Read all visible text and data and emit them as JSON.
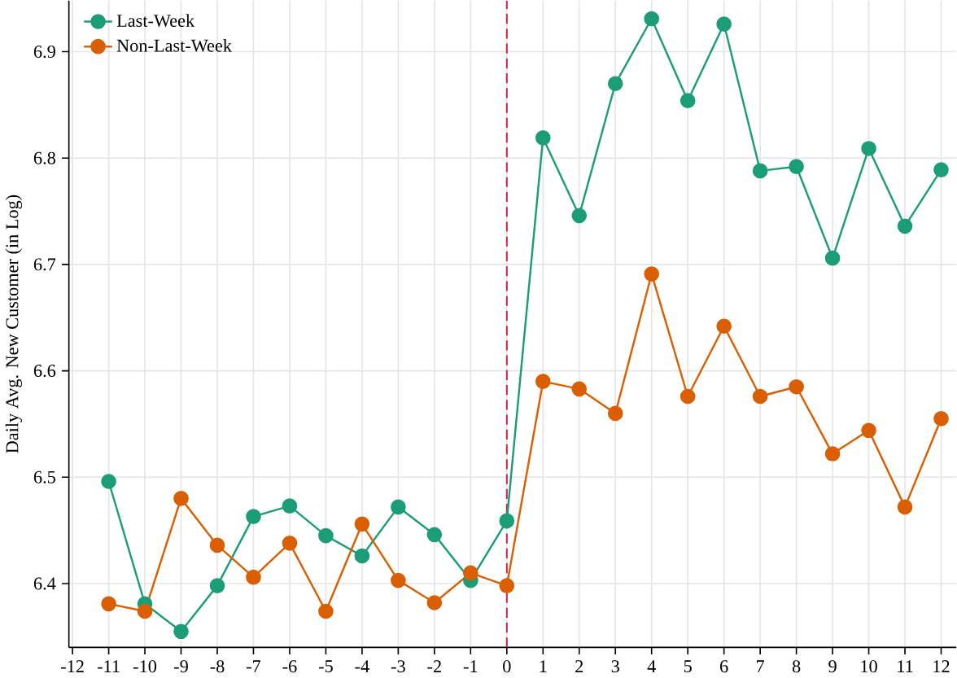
{
  "chart_data": {
    "type": "line",
    "ylabel": "Daily Avg. New Customer (in Log)",
    "x": [
      -11,
      -10,
      -9,
      -8,
      -7,
      -6,
      -5,
      -4,
      -3,
      -2,
      -1,
      0,
      1,
      2,
      3,
      4,
      5,
      6,
      7,
      8,
      9,
      10,
      11,
      12
    ],
    "series": [
      {
        "name": "Last-Week",
        "color": "#1b9e77",
        "values": [
          6.496,
          6.381,
          6.355,
          6.398,
          6.463,
          6.473,
          6.445,
          6.426,
          6.472,
          6.446,
          6.403,
          6.459,
          6.819,
          6.746,
          6.87,
          6.931,
          6.854,
          6.926,
          6.788,
          6.792,
          6.706,
          6.809,
          6.736,
          6.789
        ]
      },
      {
        "name": "Non-Last-Week",
        "color": "#d95f02",
        "values": [
          6.381,
          6.374,
          6.48,
          6.436,
          6.406,
          6.438,
          6.374,
          6.456,
          6.403,
          6.382,
          6.41,
          6.398,
          6.59,
          6.583,
          6.56,
          6.691,
          6.576,
          6.642,
          6.576,
          6.585,
          6.522,
          6.544,
          6.472,
          6.555
        ]
      }
    ],
    "xlim": [
      -12.1,
      12.42
    ],
    "ylim": [
      6.34,
      6.948
    ],
    "xticks": [
      -12,
      -11,
      -10,
      -9,
      -8,
      -7,
      -6,
      -5,
      -4,
      -3,
      -2,
      -1,
      0,
      1,
      2,
      3,
      4,
      5,
      6,
      7,
      8,
      9,
      10,
      11,
      12
    ],
    "yticks": [
      6.4,
      6.5,
      6.6,
      6.7,
      6.8,
      6.9
    ],
    "ref_lines": [
      {
        "axis": "x",
        "value": 0,
        "color": "#d6204a",
        "line_style": "dashed"
      }
    ],
    "grid": true,
    "legend": "top left",
    "marker": "circle",
    "line_style": "solid"
  }
}
